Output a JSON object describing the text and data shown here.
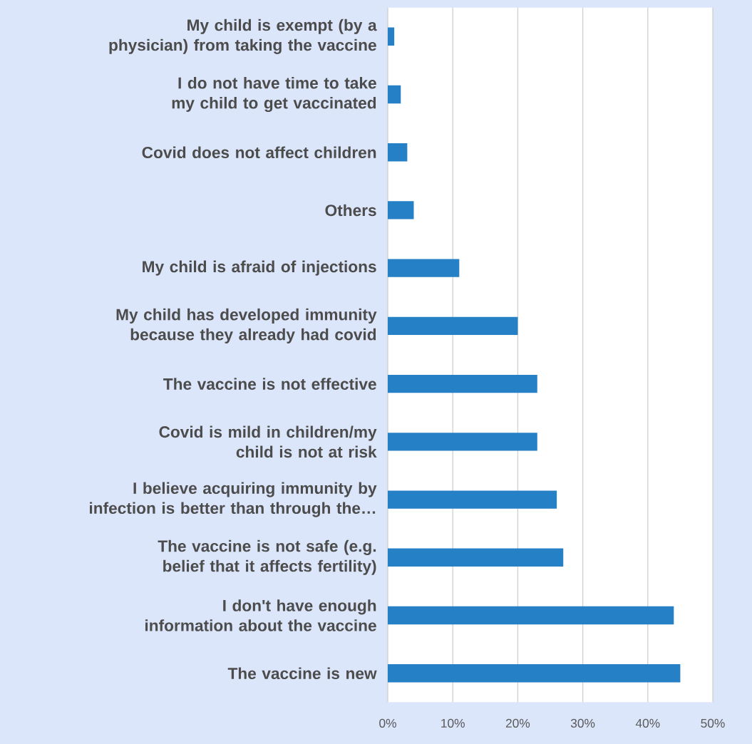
{
  "chart_data": {
    "type": "bar",
    "orientation": "horizontal",
    "categories": [
      "My child is exempt (by a physician) from taking the vaccine",
      "I do not have time to take my child to get vaccinated",
      "Covid does not affect children",
      "Others",
      "My child is afraid of injections",
      "My child has developed immunity because they already had covid",
      "The vaccine is not effective",
      "Covid is mild in children/my child is not at risk",
      "I believe acquiring immunity by infection is better than through the…",
      "The vaccine is not safe (e.g. belief that it affects fertility)",
      "I don't have enough information about the vaccine",
      "The vaccine is new"
    ],
    "values": [
      1,
      2,
      3,
      4,
      11,
      20,
      23,
      23,
      26,
      27,
      44,
      45
    ],
    "color": "#2680c6",
    "xlim": [
      0,
      50
    ],
    "xticks": [
      {
        "value": 0,
        "label": "0%"
      },
      {
        "value": 10,
        "label": "10%"
      },
      {
        "value": 20,
        "label": "20%"
      },
      {
        "value": 30,
        "label": "30%"
      },
      {
        "value": 40,
        "label": "40%"
      },
      {
        "value": 50,
        "label": "50%"
      }
    ],
    "grid": "x"
  }
}
